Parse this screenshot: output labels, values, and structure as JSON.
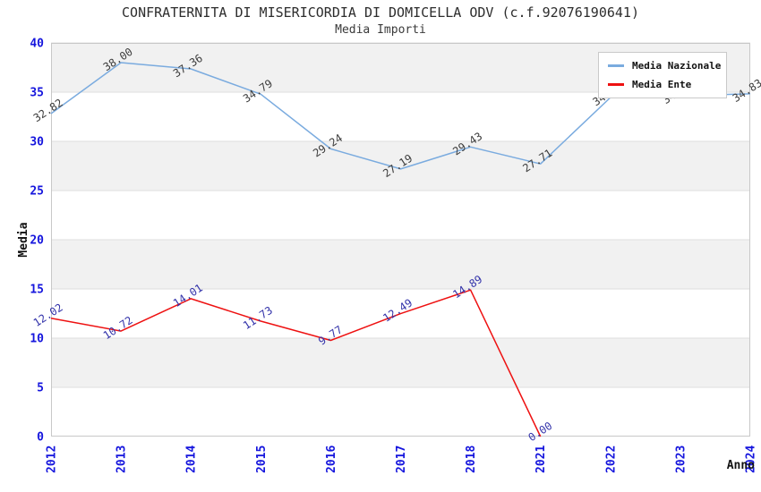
{
  "title": "CONFRATERNITA DI MISERICORDIA DI DOMICELLA ODV (c.f.92076190641)",
  "subtitle": "Media Importi",
  "colors": {
    "national_line": "#7aabdf",
    "ente_line": "#ee1111",
    "axis_tick_label": "#1515dd",
    "axis_title": "#111111",
    "national_data_label": "#3c3c3c",
    "ente_data_label": "#3333aa",
    "band_fill": "#f1f1f1",
    "band_stroke": "#dedede",
    "plot_border": "#c8c8c8",
    "background": "#ffffff"
  },
  "legend": [
    {
      "label": "Media Nazionale",
      "color": "#7aabdf"
    },
    {
      "label": "Media Ente",
      "color": "#ee1111"
    }
  ],
  "chart_data": {
    "type": "line",
    "title": "CONFRATERNITA DI MISERICORDIA DI DOMICELLA ODV (c.f.92076190641)",
    "subtitle": "Media Importi",
    "xlabel": "Anno",
    "ylabel": "Media",
    "ylim": [
      0,
      40
    ],
    "y_ticks": [
      0,
      5,
      10,
      15,
      20,
      25,
      30,
      35,
      40
    ],
    "grid": "alternating-horizontal-bands",
    "legend_position": "top-right",
    "categories": [
      "2012",
      "2013",
      "2014",
      "2015",
      "2016",
      "2017",
      "2018",
      "2021",
      "2022",
      "2023",
      "2024"
    ],
    "series": [
      {
        "name": "Media Nazionale",
        "color": "#7aabdf",
        "label_color": "#3c3c3c",
        "values": [
          32.82,
          38.0,
          37.36,
          34.79,
          29.24,
          27.19,
          29.43,
          27.71,
          34.45,
          34.65,
          34.83
        ],
        "label_hidden_by_legend": [
          false,
          false,
          false,
          false,
          false,
          false,
          false,
          false,
          true,
          true,
          false
        ]
      },
      {
        "name": "Media Ente",
        "color": "#ee1111",
        "label_color": "#3333aa",
        "values": [
          12.02,
          10.72,
          14.01,
          11.73,
          9.77,
          12.49,
          14.89,
          0.0,
          null,
          null,
          null
        ],
        "label_hidden_by_legend": [
          false,
          false,
          false,
          false,
          false,
          false,
          false,
          false,
          false,
          false,
          false
        ]
      }
    ]
  }
}
